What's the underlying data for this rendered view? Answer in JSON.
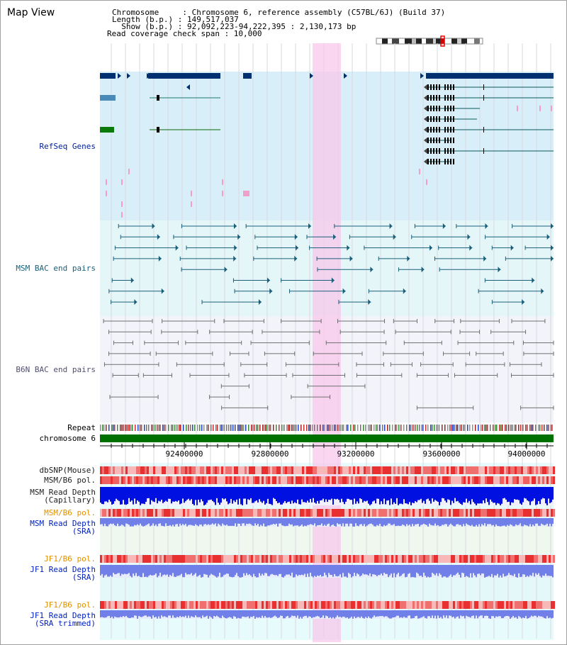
{
  "page": {
    "title": "Map View"
  },
  "info": {
    "chromosome_line": "Chromosome     : Chromosome 6, reference assembly (C57BL/6J) (Build 37)",
    "length_line": "Length (b.p.) : 149,517,037",
    "show_line": "  Show (b.p.) : 92,092,223-94,222,395 : 2,130,173 bp",
    "coverage_line": "Read coverage check span : 10,000"
  },
  "tracks": {
    "refseq": "RefSeq Genes",
    "msm_bac": "MSM BAC end pairs",
    "b6n_bac": "B6N BAC end pairs",
    "repeat": "Repeat",
    "chromosome": "chromosome 6",
    "dbsnp": "dbSNP(Mouse)",
    "msm_b6_pol": "MSM/B6 pol.",
    "msm_read_depth_cap": "MSM Read Depth\n(Capillary)",
    "msm_b6_pol_sra": "MSM/B6 pol.",
    "msm_read_depth_sra": "MSM Read Depth\n(SRA)",
    "jf1_b6_pol": "JF1/B6 pol.",
    "jf1_read_depth_sra": "JF1 Read Depth\n(SRA)",
    "jf1_b6_pol_trim": "JF1/B6 pol.",
    "jf1_read_depth_trim": "JF1 Read Depth\n(SRA trimmed)"
  },
  "axis": {
    "tick_labels": [
      "92400000",
      "92800000",
      "93200000",
      "93600000",
      "94000000"
    ]
  },
  "colors": {
    "refseq_bg": "#d8eef8",
    "msm_bg": "#e4f6f8",
    "b6n_bg": "#f2f4fa",
    "highlight": "#f8c8ec",
    "chromosome": "#007000",
    "refseq_gene": "#003070",
    "msm_pair": "#1a5f7a",
    "b6n_pair": "#707070",
    "depth_dark": "#0010e0",
    "depth_light": "#7080e8"
  }
}
